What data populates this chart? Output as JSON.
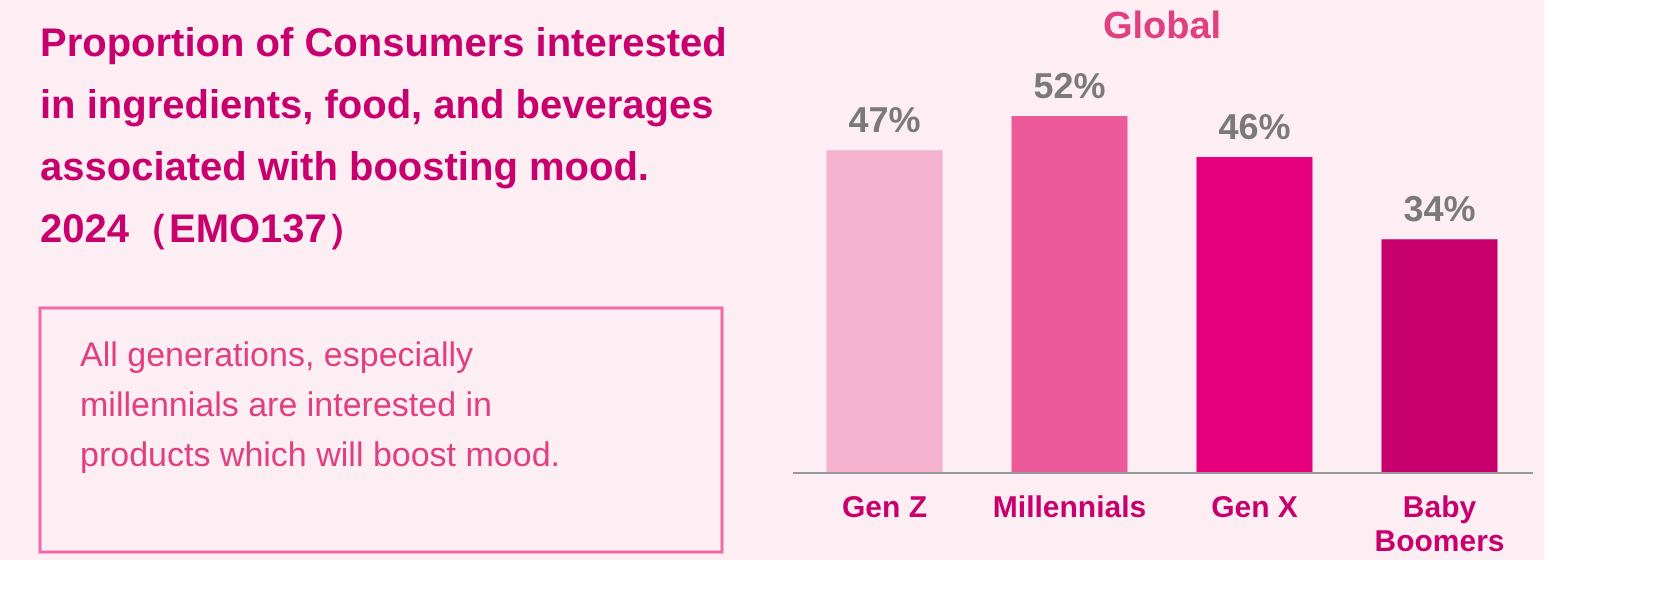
{
  "chart_data": {
    "type": "bar",
    "title": "Proportion of Consumers interested in ingredients, food, and beverages associated with boosting mood. 2024（EMO137）",
    "subtitle": "Global",
    "annotations": [
      "All generations, especially millennials are interested in products which will boost mood."
    ],
    "categories": [
      "Gen Z",
      "Millennials",
      "Gen X",
      "Baby Boomers"
    ],
    "values": [
      47,
      52,
      46,
      34
    ],
    "colors": [
      "#f4b3cf",
      "#ec5a9a",
      "#e6007e",
      "#c8006e"
    ],
    "value_labels": [
      "47%",
      "52%",
      "46%",
      "34%"
    ]
  }
}
